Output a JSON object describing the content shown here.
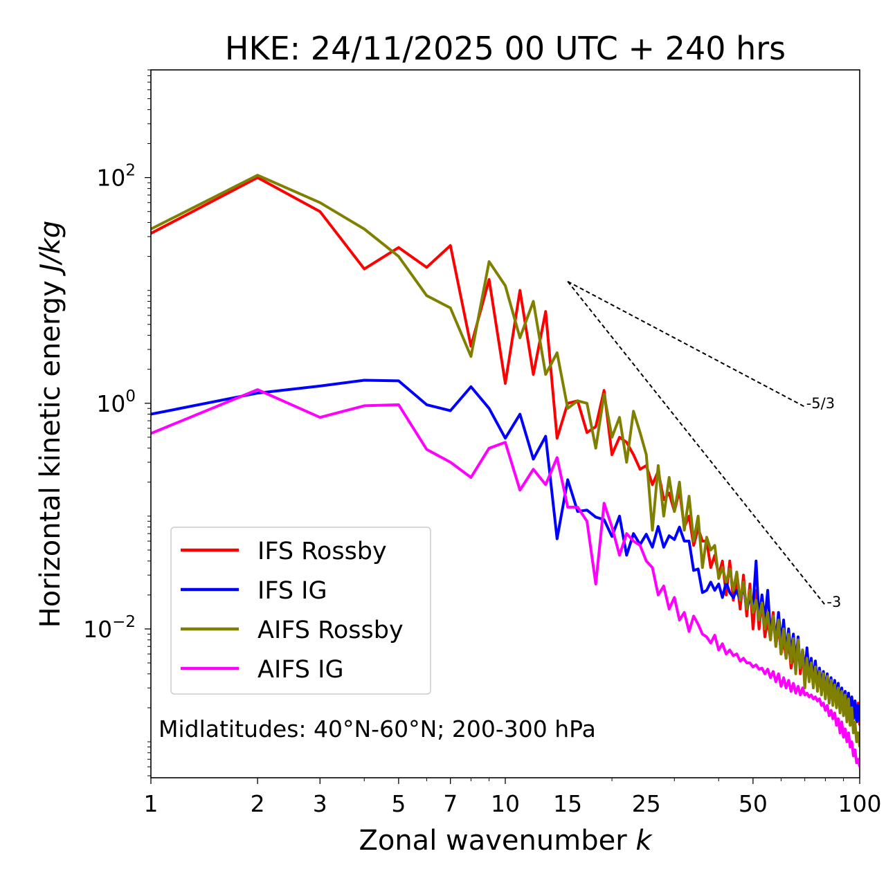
{
  "chart_data": {
    "type": "line",
    "scale": {
      "x": "log",
      "y": "log"
    },
    "title": "HKE: 24/11/2025 00 UTC + 240 hrs",
    "xlabel": "Zonal wavenumber ",
    "xlabel_italic": "k",
    "ylabel": "Horizontal kinetic energy ",
    "ylabel_italic": "J/kg",
    "xlim": [
      1,
      100
    ],
    "ylim": [
      0.00048,
      900
    ],
    "x_ticks": [
      1,
      2,
      3,
      5,
      7,
      10,
      15,
      25,
      50,
      100
    ],
    "x_tick_labels": [
      "1",
      "2",
      "3",
      "5",
      "7",
      "10",
      "15",
      "25",
      "50",
      "100"
    ],
    "y_ticks": [
      {
        "value": 100,
        "base": "10",
        "exp": "2"
      },
      {
        "value": 1,
        "base": "10",
        "exp": "0"
      },
      {
        "value": 0.01,
        "base": "10",
        "exp": "−2"
      }
    ],
    "annotation": "Midlatitudes: 40°N-60°N; 200-300 hPa",
    "legend_position": "lower-left",
    "reference_lines": [
      {
        "label": "-5/3",
        "from": [
          15,
          12
        ],
        "to": [
          70,
          0.93
        ]
      },
      {
        "label": "-3",
        "from": [
          15,
          12
        ],
        "to": [
          80,
          0.0162
        ]
      }
    ],
    "series": [
      {
        "name": "IFS Rossby",
        "color": "#ff0000",
        "values": [
          32,
          100,
          50,
          15.5,
          24,
          16,
          25,
          3.2,
          12.5,
          1.5,
          10,
          1.8,
          6.5,
          0.49,
          1.0,
          1.05,
          0.55,
          0.62,
          1.3,
          0.35,
          0.5,
          0.45,
          0.35,
          0.26,
          0.28,
          0.19,
          0.25,
          0.14,
          0.16,
          0.11,
          0.17,
          0.08,
          0.1,
          0.055,
          0.078,
          0.06,
          0.06,
          0.035,
          0.045,
          0.03,
          0.04,
          0.02,
          0.04,
          0.018,
          0.028,
          0.015,
          0.03,
          0.013,
          0.025,
          0.01,
          0.022,
          0.01,
          0.018,
          0.0085,
          0.012,
          0.008,
          0.014,
          0.007,
          0.011,
          0.006,
          0.008,
          0.0055,
          0.008,
          0.0045,
          0.006,
          0.0045,
          0.0082,
          0.004,
          0.0065,
          0.0042,
          0.0052,
          0.0038,
          0.005,
          0.0034,
          0.0046,
          0.0036,
          0.0042,
          0.0035,
          0.0038,
          0.0032,
          0.0035,
          0.0029,
          0.0033,
          0.0026,
          0.0032,
          0.0024,
          0.003,
          0.0024,
          0.0028,
          0.0022,
          0.0027,
          0.002,
          0.0026,
          0.0019,
          0.0024,
          0.0018,
          0.0023,
          0.0016,
          0.0022,
          0.0014
        ]
      },
      {
        "name": "IFS IG",
        "color": "#0000ff",
        "values": [
          0.8,
          1.23,
          1.42,
          1.6,
          1.58,
          0.97,
          0.86,
          1.4,
          0.9,
          0.49,
          0.8,
          0.32,
          0.51,
          0.063,
          0.21,
          0.11,
          0.113,
          0.098,
          0.093,
          0.066,
          0.1,
          0.045,
          0.07,
          0.056,
          0.069,
          0.053,
          0.081,
          0.053,
          0.067,
          0.062,
          0.08,
          0.06,
          0.06,
          0.033,
          0.034,
          0.021,
          0.022,
          0.026,
          0.022,
          0.025,
          0.019,
          0.026,
          0.021,
          0.019,
          0.022,
          0.018,
          0.024,
          0.015,
          0.019,
          0.016,
          0.04,
          0.012,
          0.02,
          0.012,
          0.022,
          0.009,
          0.013,
          0.008,
          0.014,
          0.0075,
          0.012,
          0.006,
          0.01,
          0.006,
          0.009,
          0.005,
          0.0085,
          0.0045,
          0.0065,
          0.004,
          0.0068,
          0.004,
          0.0055,
          0.0035,
          0.0052,
          0.0031,
          0.0045,
          0.0031,
          0.0042,
          0.0028,
          0.004,
          0.0026,
          0.0037,
          0.0025,
          0.0035,
          0.0024,
          0.0033,
          0.0021,
          0.003,
          0.002,
          0.0028,
          0.0019,
          0.0027,
          0.0018,
          0.0025,
          0.0016,
          0.0023,
          0.0015,
          0.0021,
          0.0015
        ]
      },
      {
        "name": "AIFS Rossby",
        "color": "#808000",
        "values": [
          35,
          105,
          60,
          35,
          20,
          9,
          7,
          2.6,
          18,
          11,
          3.8,
          8,
          1.8,
          2.8,
          0.9,
          1.05,
          1.0,
          0.4,
          1.2,
          0.5,
          0.75,
          0.3,
          0.85,
          0.55,
          0.35,
          0.075,
          0.28,
          0.1,
          0.22,
          0.11,
          0.2,
          0.075,
          0.15,
          0.06,
          0.1,
          0.035,
          0.065,
          0.05,
          0.055,
          0.028,
          0.035,
          0.026,
          0.034,
          0.022,
          0.032,
          0.018,
          0.026,
          0.015,
          0.022,
          0.014,
          0.018,
          0.012,
          0.017,
          0.01,
          0.014,
          0.008,
          0.013,
          0.007,
          0.012,
          0.006,
          0.01,
          0.0055,
          0.009,
          0.005,
          0.0082,
          0.004,
          0.008,
          0.0045,
          0.0065,
          0.003,
          0.0055,
          0.0034,
          0.005,
          0.003,
          0.0046,
          0.0028,
          0.0042,
          0.0026,
          0.004,
          0.0024,
          0.0038,
          0.0022,
          0.0035,
          0.0021,
          0.0032,
          0.002,
          0.003,
          0.0018,
          0.0028,
          0.0017,
          0.0026,
          0.0015,
          0.0024,
          0.0014,
          0.002,
          0.0012,
          0.0015,
          0.001,
          0.0012,
          0.0009
        ]
      },
      {
        "name": "AIFS IG",
        "color": "#ff00ff",
        "values": [
          0.54,
          1.32,
          0.75,
          0.95,
          0.97,
          0.39,
          0.3,
          0.22,
          0.4,
          0.45,
          0.17,
          0.26,
          0.19,
          0.33,
          0.12,
          0.12,
          0.09,
          0.025,
          0.13,
          0.08,
          0.045,
          0.07,
          0.06,
          0.055,
          0.04,
          0.035,
          0.02,
          0.024,
          0.015,
          0.019,
          0.012,
          0.014,
          0.0095,
          0.013,
          0.011,
          0.009,
          0.0085,
          0.0075,
          0.0088,
          0.0065,
          0.0074,
          0.006,
          0.0065,
          0.0058,
          0.006,
          0.0052,
          0.0055,
          0.005,
          0.005,
          0.0046,
          0.0048,
          0.0044,
          0.0045,
          0.004,
          0.0044,
          0.0037,
          0.0042,
          0.0034,
          0.004,
          0.0031,
          0.0037,
          0.003,
          0.0035,
          0.0028,
          0.0033,
          0.0027,
          0.0031,
          0.0026,
          0.003,
          0.0026,
          0.0027,
          0.0025,
          0.0026,
          0.0024,
          0.0025,
          0.0023,
          0.0024,
          0.0021,
          0.0022,
          0.0019,
          0.0021,
          0.0017,
          0.0019,
          0.0016,
          0.0018,
          0.0014,
          0.0016,
          0.0012,
          0.0015,
          0.0011,
          0.0013,
          0.001,
          0.0012,
          0.0009,
          0.001,
          0.00075,
          0.00085,
          0.00065,
          0.0007,
          0.0006
        ]
      }
    ]
  }
}
